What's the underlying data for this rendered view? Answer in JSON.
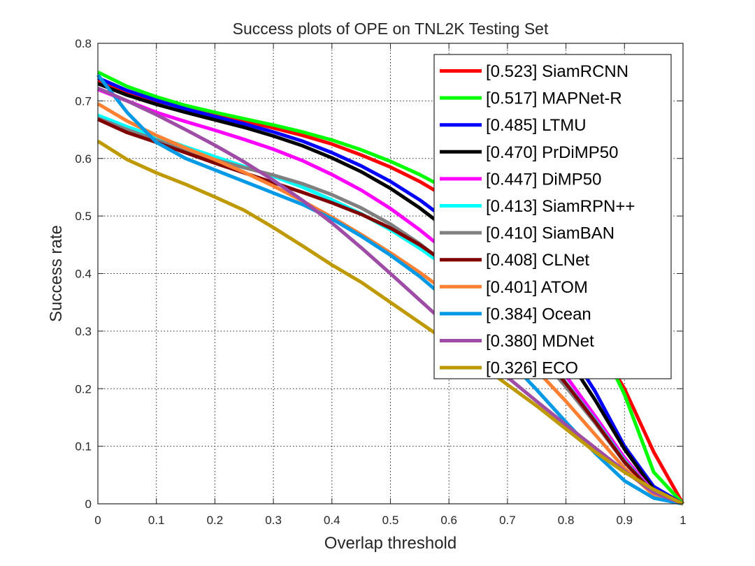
{
  "chart_data": {
    "type": "line",
    "title": "Success plots of OPE on TNL2K Testing Set",
    "xlabel": "Overlap threshold",
    "ylabel": "Success rate",
    "xlim": [
      0,
      1
    ],
    "ylim": [
      0,
      0.8
    ],
    "xticks": [
      "0",
      "0.1",
      "0.2",
      "0.3",
      "0.4",
      "0.5",
      "0.6",
      "0.7",
      "0.8",
      "0.9",
      "1"
    ],
    "yticks": [
      "0",
      "0.1",
      "0.2",
      "0.3",
      "0.4",
      "0.5",
      "0.6",
      "0.7",
      "0.8"
    ],
    "grid": true,
    "legend_position": "top-right",
    "x": [
      0,
      0.05,
      0.1,
      0.15,
      0.2,
      0.25,
      0.3,
      0.35,
      0.4,
      0.45,
      0.5,
      0.55,
      0.6,
      0.65,
      0.7,
      0.75,
      0.8,
      0.85,
      0.9,
      0.95,
      1.0
    ],
    "series": [
      {
        "name": "[0.523] SiamRCNN",
        "color": "#ff0000",
        "values": [
          0.735,
          0.715,
          0.7,
          0.688,
          0.676,
          0.665,
          0.653,
          0.64,
          0.625,
          0.606,
          0.585,
          0.56,
          0.53,
          0.495,
          0.455,
          0.41,
          0.355,
          0.285,
          0.2,
          0.09,
          0.0
        ]
      },
      {
        "name": "[0.517] MAPNet-R",
        "color": "#00ff00",
        "values": [
          0.75,
          0.725,
          0.707,
          0.692,
          0.68,
          0.669,
          0.658,
          0.646,
          0.632,
          0.615,
          0.595,
          0.572,
          0.545,
          0.512,
          0.473,
          0.427,
          0.37,
          0.295,
          0.19,
          0.055,
          0.0
        ]
      },
      {
        "name": "[0.485] LTMU",
        "color": "#0000ff",
        "values": [
          0.74,
          0.718,
          0.701,
          0.686,
          0.673,
          0.66,
          0.646,
          0.63,
          0.61,
          0.587,
          0.56,
          0.528,
          0.49,
          0.447,
          0.398,
          0.343,
          0.275,
          0.195,
          0.1,
          0.03,
          0.0
        ]
      },
      {
        "name": "[0.470] PrDiMP50",
        "color": "#000000",
        "values": [
          0.73,
          0.71,
          0.694,
          0.68,
          0.667,
          0.654,
          0.639,
          0.622,
          0.601,
          0.577,
          0.548,
          0.514,
          0.475,
          0.43,
          0.38,
          0.323,
          0.258,
          0.18,
          0.095,
          0.025,
          0.0
        ]
      },
      {
        "name": "[0.447] DiMP50",
        "color": "#ff00ff",
        "values": [
          0.72,
          0.7,
          0.68,
          0.664,
          0.649,
          0.633,
          0.616,
          0.596,
          0.572,
          0.545,
          0.513,
          0.476,
          0.435,
          0.39,
          0.34,
          0.285,
          0.222,
          0.152,
          0.08,
          0.02,
          0.0
        ]
      },
      {
        "name": "[0.413] SiamRPN++",
        "color": "#00ffff",
        "values": [
          0.675,
          0.655,
          0.638,
          0.62,
          0.603,
          0.586,
          0.569,
          0.55,
          0.528,
          0.504,
          0.476,
          0.444,
          0.408,
          0.366,
          0.32,
          0.268,
          0.21,
          0.145,
          0.075,
          0.018,
          0.0
        ]
      },
      {
        "name": "[0.410] SiamBAN",
        "color": "#808080",
        "values": [
          0.67,
          0.65,
          0.632,
          0.614,
          0.598,
          0.584,
          0.571,
          0.556,
          0.537,
          0.514,
          0.486,
          0.452,
          0.412,
          0.367,
          0.317,
          0.262,
          0.203,
          0.14,
          0.072,
          0.018,
          0.0
        ]
      },
      {
        "name": "[0.408] CLNet",
        "color": "#800000",
        "values": [
          0.668,
          0.645,
          0.628,
          0.61,
          0.592,
          0.575,
          0.558,
          0.541,
          0.523,
          0.503,
          0.479,
          0.45,
          0.415,
          0.373,
          0.325,
          0.27,
          0.209,
          0.143,
          0.073,
          0.018,
          0.0
        ]
      },
      {
        "name": "[0.401] ATOM",
        "color": "#ff8033",
        "values": [
          0.695,
          0.665,
          0.64,
          0.618,
          0.598,
          0.576,
          0.552,
          0.526,
          0.498,
          0.468,
          0.436,
          0.402,
          0.365,
          0.325,
          0.28,
          0.232,
          0.178,
          0.12,
          0.062,
          0.015,
          0.0
        ]
      },
      {
        "name": "[0.384] Ocean",
        "color": "#0099e6",
        "values": [
          0.745,
          0.68,
          0.628,
          0.6,
          0.58,
          0.56,
          0.54,
          0.52,
          0.495,
          0.465,
          0.432,
          0.395,
          0.352,
          0.304,
          0.252,
          0.198,
          0.142,
          0.088,
          0.04,
          0.01,
          0.0
        ]
      },
      {
        "name": "[0.380] MDNet",
        "color": "#9e4ca6",
        "values": [
          0.722,
          0.7,
          0.676,
          0.65,
          0.623,
          0.594,
          0.562,
          0.527,
          0.488,
          0.445,
          0.4,
          0.354,
          0.308,
          0.263,
          0.22,
          0.178,
          0.137,
          0.097,
          0.057,
          0.02,
          0.0
        ]
      },
      {
        "name": "[0.326] ECO",
        "color": "#bf9900",
        "values": [
          0.63,
          0.598,
          0.575,
          0.555,
          0.533,
          0.51,
          0.48,
          0.448,
          0.415,
          0.385,
          0.35,
          0.315,
          0.28,
          0.244,
          0.207,
          0.17,
          0.13,
          0.09,
          0.055,
          0.025,
          0.0
        ]
      }
    ]
  }
}
